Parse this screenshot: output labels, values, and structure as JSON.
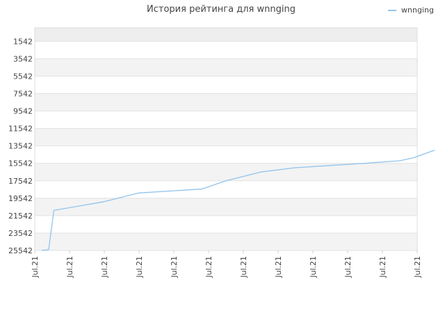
{
  "chart_data": {
    "type": "line",
    "title": "История рейтинга для wnnging",
    "xlabel": "",
    "ylabel": "",
    "legend_position": "top-right",
    "grid": true,
    "y_inverted": true,
    "ylim": [
      25542,
      0
    ],
    "y_ticks": [
      "1542",
      "3542",
      "5542",
      "7542",
      "9542",
      "11542",
      "13542",
      "15542",
      "17542",
      "19542",
      "21542",
      "23542",
      "25542"
    ],
    "x_ticks": [
      "Jul.21",
      "Jul.21",
      "Jul.21",
      "Jul.21",
      "Jul.21",
      "Jul.21",
      "Jul.21",
      "Jul.21",
      "Jul.21",
      "Jul.21",
      "Jul.21",
      "Jul.21"
    ],
    "series": [
      {
        "name": "wnnging",
        "color": "#90c3ee",
        "x": [
          0.2,
          0.4,
          0.55,
          2.0,
          3.0,
          4.8,
          5.5,
          6.5,
          7.5,
          8.5,
          9.5,
          10.5,
          10.9,
          11.5
        ],
        "values": [
          25542,
          25442,
          20942,
          19942,
          18942,
          18492,
          17542,
          16542,
          16042,
          15792,
          15542,
          15242,
          14892,
          14042
        ]
      }
    ]
  }
}
